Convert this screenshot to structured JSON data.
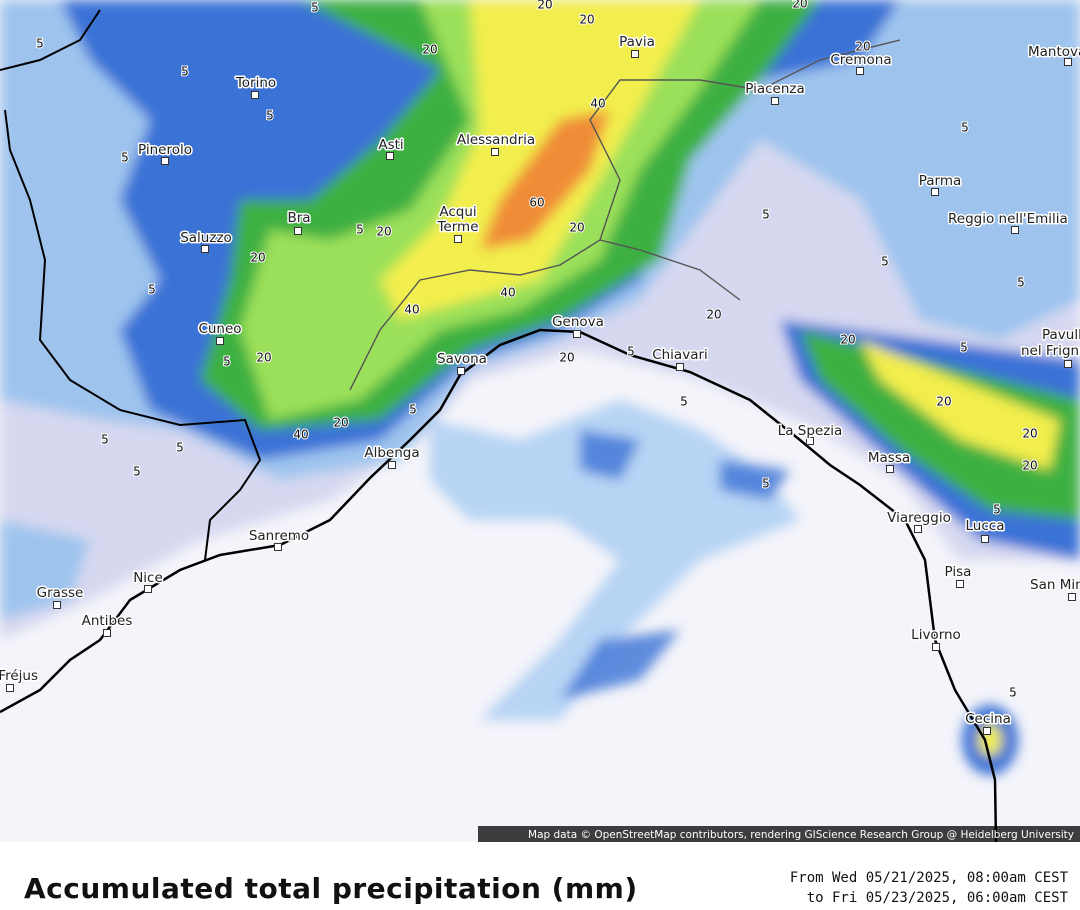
{
  "map": {
    "cities": [
      "Torino",
      "Pinerolo",
      "Asti",
      "Alessandria",
      "Pavia",
      "Cremona",
      "Mantova",
      "Piacenza",
      "Parma",
      "Reggio nell'Emilia",
      "Bra",
      "Saluzzo",
      "Acqui",
      "Terme",
      "Cuneo",
      "Genova",
      "Savona",
      "Chiavari",
      "Pavullo",
      "nel Frignano",
      "La Spezia",
      "Massa",
      "Albenga",
      "Viareggio",
      "Lucca",
      "Sanremo",
      "Nice",
      "Grasse",
      "Antibes",
      "Pisa",
      "San Miniato",
      "Livorno",
      "Cecina",
      "Fréjus"
    ],
    "contour_labels": [
      5,
      5,
      5,
      5,
      5,
      20,
      20,
      20,
      20,
      40,
      60,
      20,
      40,
      40,
      20,
      5,
      40,
      20,
      5,
      5,
      5,
      5,
      20,
      5,
      5,
      20,
      5,
      5,
      5,
      20,
      20,
      20,
      20,
      5,
      5,
      5,
      5,
      5,
      20,
      20,
      5,
      5,
      20
    ],
    "attribution": "Map data © OpenStreetMap contributors, rendering GIScience Research Group @ Heidelberg University"
  },
  "footer": {
    "title": "Accumulated total precipitation (mm)",
    "period": [
      "From Wed 05/21/2025, 08:00am CEST",
      "to Fri 05/23/2025, 06:00am CEST"
    ]
  }
}
